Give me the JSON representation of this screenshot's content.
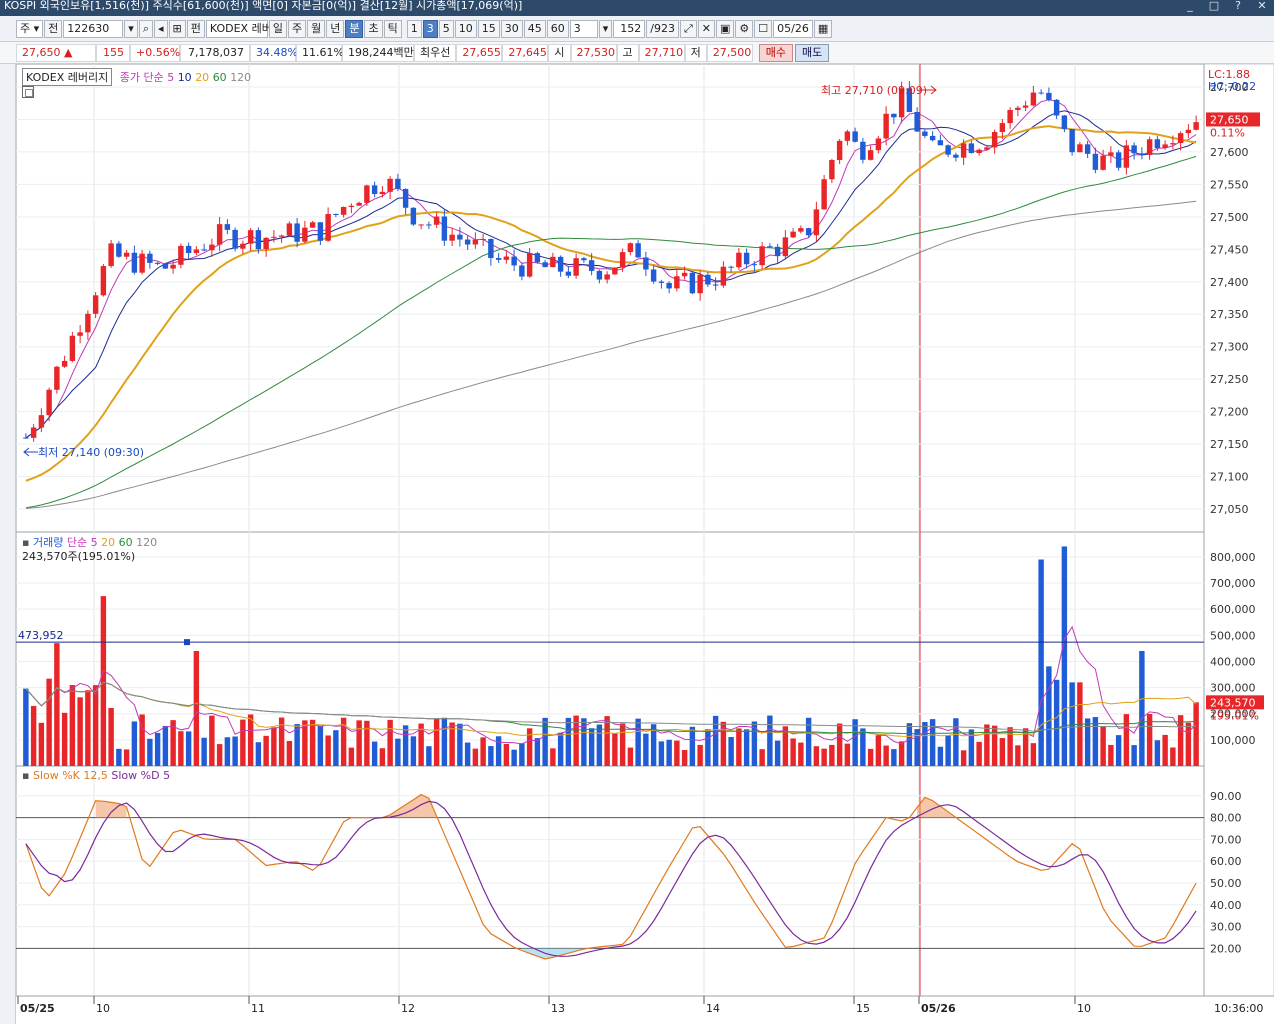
{
  "window": {
    "title": "KOSPI 외국인보유[1,516(천)] 주식수[61,600(천)] 액면[0] 자본금[0(억)] 결산[12월] 시가총액[17,069(억)]",
    "controls": [
      "_",
      "□",
      "?",
      "✕"
    ]
  },
  "toolbar": {
    "market": "주",
    "prev_label": "전",
    "code": "122630",
    "name_prefix": "펀",
    "name": "KODEX 레버",
    "periods": [
      "일",
      "주",
      "월",
      "년",
      "분",
      "초",
      "틱"
    ],
    "selected_period": "분",
    "intervals": [
      "1",
      "3",
      "5",
      "10",
      "15",
      "30",
      "45",
      "60"
    ],
    "selected_interval": "3",
    "interval_value": "3",
    "count": "152",
    "total": "/923",
    "date": "05/26"
  },
  "quote": {
    "price": "27,650 ▲",
    "change": "155",
    "change_pct": "+0.56%",
    "volume": "7,178,037",
    "ratio1": "34.48%",
    "ratio2": "11.61%",
    "amount": "198,244백만",
    "best_bid_label": "최우선",
    "best_ask": "27,655",
    "best_bid": "27,645",
    "open_label": "시",
    "open": "27,530",
    "high_label": "고",
    "high": "27,710",
    "low_label": "저",
    "low": "27,500",
    "buy_label": "매수",
    "sell_label": "매도"
  },
  "price_panel": {
    "name": "KODEX 레버리지",
    "ma_label": "종가 단순",
    "ma_periods": [
      "5",
      "10",
      "20",
      "60",
      "120"
    ],
    "lc": "LC:1.88",
    "hc": "HC:-0.22",
    "last_price": "27,650",
    "last_pct": "0.11%",
    "high_annotation": "최고 27,710 (09:09)",
    "low_annotation": "최저 27,140 (09:30)",
    "y_ticks": [
      "27,700",
      "27,650",
      "27,600",
      "27,550",
      "27,500",
      "27,450",
      "27,400",
      "27,350",
      "27,300",
      "27,250",
      "27,200",
      "27,150",
      "27,100",
      "27,050"
    ]
  },
  "volume_panel": {
    "title": "거래량",
    "ma_label": "단순",
    "ma_periods": [
      "5",
      "20",
      "60",
      "120"
    ],
    "current": "243,570주(195.01%)",
    "ref_line_label": "473,952",
    "last_value": "243,570",
    "last_pct": "195.01%",
    "y_ticks": [
      "800,000",
      "700,000",
      "600,000",
      "500,000",
      "400,000",
      "300,000",
      "200,000",
      "100,000"
    ]
  },
  "stoch_panel": {
    "k_label": "Slow %K 12,5",
    "d_label": "Slow %D 5",
    "y_ticks": [
      "90.00",
      "80.00",
      "70.00",
      "60.00",
      "50.00",
      "40.00",
      "30.00",
      "20.00"
    ]
  },
  "x_axis": {
    "labels": [
      "05/25",
      "10",
      "11",
      "12",
      "13",
      "14",
      "15",
      "05/26",
      "10"
    ],
    "time": "10:36:00"
  },
  "colors": {
    "up": "#e8262a",
    "down": "#1f5cd6",
    "ma5": "#c03ab8",
    "ma10": "#1a2a90",
    "ma20": "#e0a21a",
    "ma60": "#2e8a3c",
    "ma120": "#8a8a8a",
    "stoch_k": "#e07a1e",
    "stoch_d": "#7a2a9a"
  },
  "chart_data": {
    "type": "candlestick",
    "series_count": 152,
    "y_range": [
      27030,
      27720
    ],
    "annotations": {
      "high": 27710,
      "low": 27140,
      "last": 27650
    }
  }
}
